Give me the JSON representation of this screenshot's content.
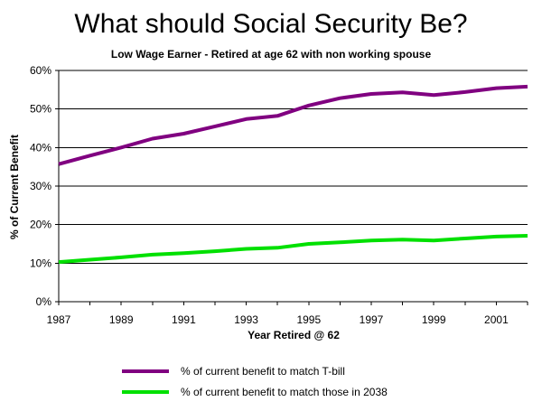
{
  "chart_data": {
    "type": "line",
    "title": "What should Social Security Be?",
    "subtitle": "Low Wage Earner - Retired at age 62 with non working spouse",
    "xlabel": "Year Retired @ 62",
    "ylabel": "% of Current Benefit",
    "x": [
      1987,
      1988,
      1989,
      1990,
      1991,
      1992,
      1993,
      1994,
      1995,
      1996,
      1997,
      1998,
      1999,
      2000,
      2001,
      2002
    ],
    "xlim": [
      1987,
      2002
    ],
    "xticks": [
      1987,
      1989,
      1991,
      1993,
      1995,
      1997,
      1999,
      2001
    ],
    "xtick_labels": [
      "1987",
      "1989",
      "1991",
      "1993",
      "1995",
      "1997",
      "1999",
      "2001"
    ],
    "ylim": [
      0,
      60
    ],
    "yticks": [
      0,
      10,
      20,
      30,
      40,
      50,
      60
    ],
    "ytick_labels": [
      "0%",
      "10%",
      "20%",
      "30%",
      "40%",
      "50%",
      "60%"
    ],
    "grid": "horizontal",
    "legend_position": "bottom",
    "series": [
      {
        "name": "% of current benefit to match T-bill",
        "color": "#800080",
        "values": [
          35.7,
          37.9,
          40.0,
          42.3,
          43.6,
          45.5,
          47.4,
          48.2,
          50.9,
          52.8,
          53.9,
          54.3,
          53.6,
          54.4,
          55.4,
          55.8
        ]
      },
      {
        "name": "% of current benefit to match those in 2038",
        "color": "#00e000",
        "values": [
          10.3,
          10.9,
          11.5,
          12.2,
          12.6,
          13.1,
          13.7,
          14.0,
          15.0,
          15.4,
          15.9,
          16.1,
          15.9,
          16.4,
          16.9,
          17.1
        ]
      }
    ]
  }
}
